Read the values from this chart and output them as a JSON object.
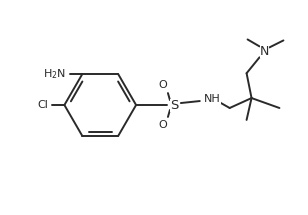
{
  "bg_color": "#ffffff",
  "line_color": "#2a2a2a",
  "text_color": "#2a2a2a",
  "line_width": 1.4,
  "font_size": 8.0,
  "figsize": [
    3.08,
    2.15
  ],
  "dpi": 100,
  "xlim": [
    0,
    308
  ],
  "ylim": [
    0,
    215
  ]
}
